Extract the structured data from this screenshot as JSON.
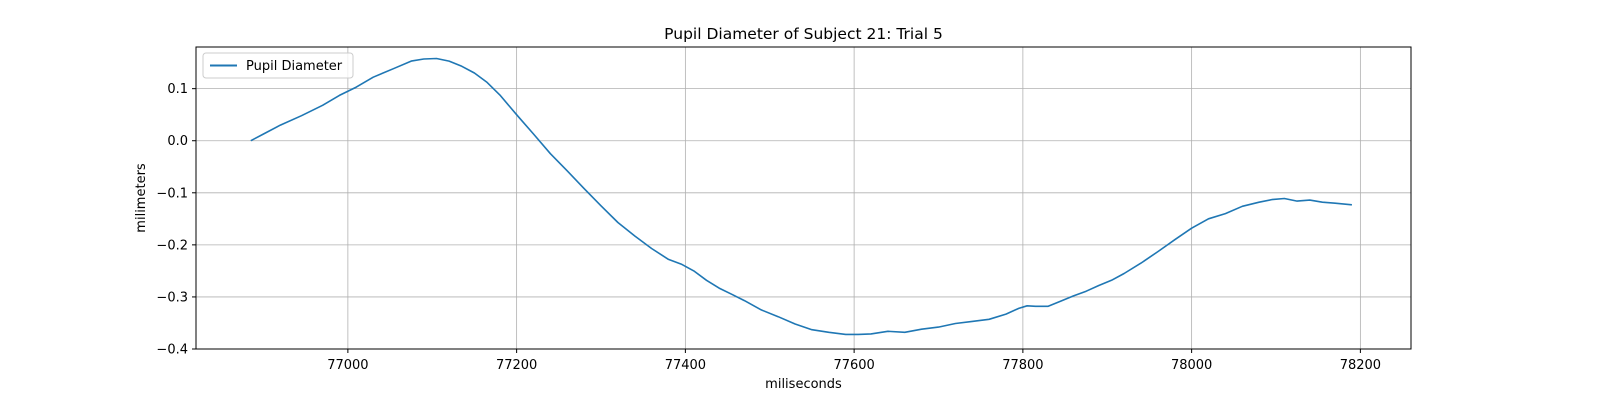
{
  "chart_data": {
    "type": "line",
    "title": "Pupil Diameter of Subject 21: Trial 5",
    "xlabel": "miliseconds",
    "ylabel": "milimeters",
    "xlim": [
      76820,
      78260
    ],
    "ylim": [
      -0.4,
      0.18
    ],
    "xticks": [
      77000,
      77200,
      77400,
      77600,
      77800,
      78000,
      78200
    ],
    "yticks": [
      0.1,
      0.0,
      -0.1,
      -0.2,
      -0.3,
      -0.4
    ],
    "ytick_labels": [
      "0.1",
      "0.0",
      "−0.1",
      "−0.2",
      "−0.3",
      "−0.4"
    ],
    "grid": true,
    "legend_position": "upper-left",
    "series": [
      {
        "name": "Pupil Diameter",
        "color": "#1f77b4",
        "x": [
          76885,
          76900,
          76920,
          76945,
          76970,
          76990,
          77010,
          77030,
          77055,
          77075,
          77090,
          77105,
          77120,
          77135,
          77150,
          77165,
          77180,
          77200,
          77220,
          77240,
          77260,
          77280,
          77300,
          77320,
          77340,
          77360,
          77380,
          77395,
          77410,
          77425,
          77440,
          77455,
          77470,
          77490,
          77510,
          77530,
          77550,
          77570,
          77590,
          77605,
          77620,
          77640,
          77660,
          77680,
          77700,
          77720,
          77740,
          77760,
          77780,
          77795,
          77805,
          77815,
          77830,
          77845,
          77860,
          77875,
          77890,
          77905,
          77920,
          77940,
          77960,
          77980,
          78000,
          78020,
          78040,
          78060,
          78080,
          78095,
          78110,
          78125,
          78140,
          78155,
          78170,
          78190
        ],
        "y": [
          0.0,
          0.013,
          0.03,
          0.048,
          0.068,
          0.087,
          0.103,
          0.122,
          0.139,
          0.153,
          0.157,
          0.158,
          0.153,
          0.143,
          0.13,
          0.112,
          0.088,
          0.05,
          0.013,
          -0.025,
          -0.058,
          -0.092,
          -0.125,
          -0.157,
          -0.183,
          -0.207,
          -0.228,
          -0.237,
          -0.25,
          -0.268,
          -0.283,
          -0.295,
          -0.307,
          -0.325,
          -0.338,
          -0.352,
          -0.363,
          -0.368,
          -0.372,
          -0.372,
          -0.371,
          -0.366,
          -0.368,
          -0.362,
          -0.358,
          -0.351,
          -0.347,
          -0.343,
          -0.333,
          -0.322,
          -0.317,
          -0.318,
          -0.318,
          -0.308,
          -0.298,
          -0.289,
          -0.278,
          -0.268,
          -0.255,
          -0.235,
          -0.213,
          -0.19,
          -0.168,
          -0.15,
          -0.14,
          -0.126,
          -0.118,
          -0.113,
          -0.111,
          -0.116,
          -0.114,
          -0.118,
          -0.12,
          -0.123
        ]
      }
    ]
  }
}
